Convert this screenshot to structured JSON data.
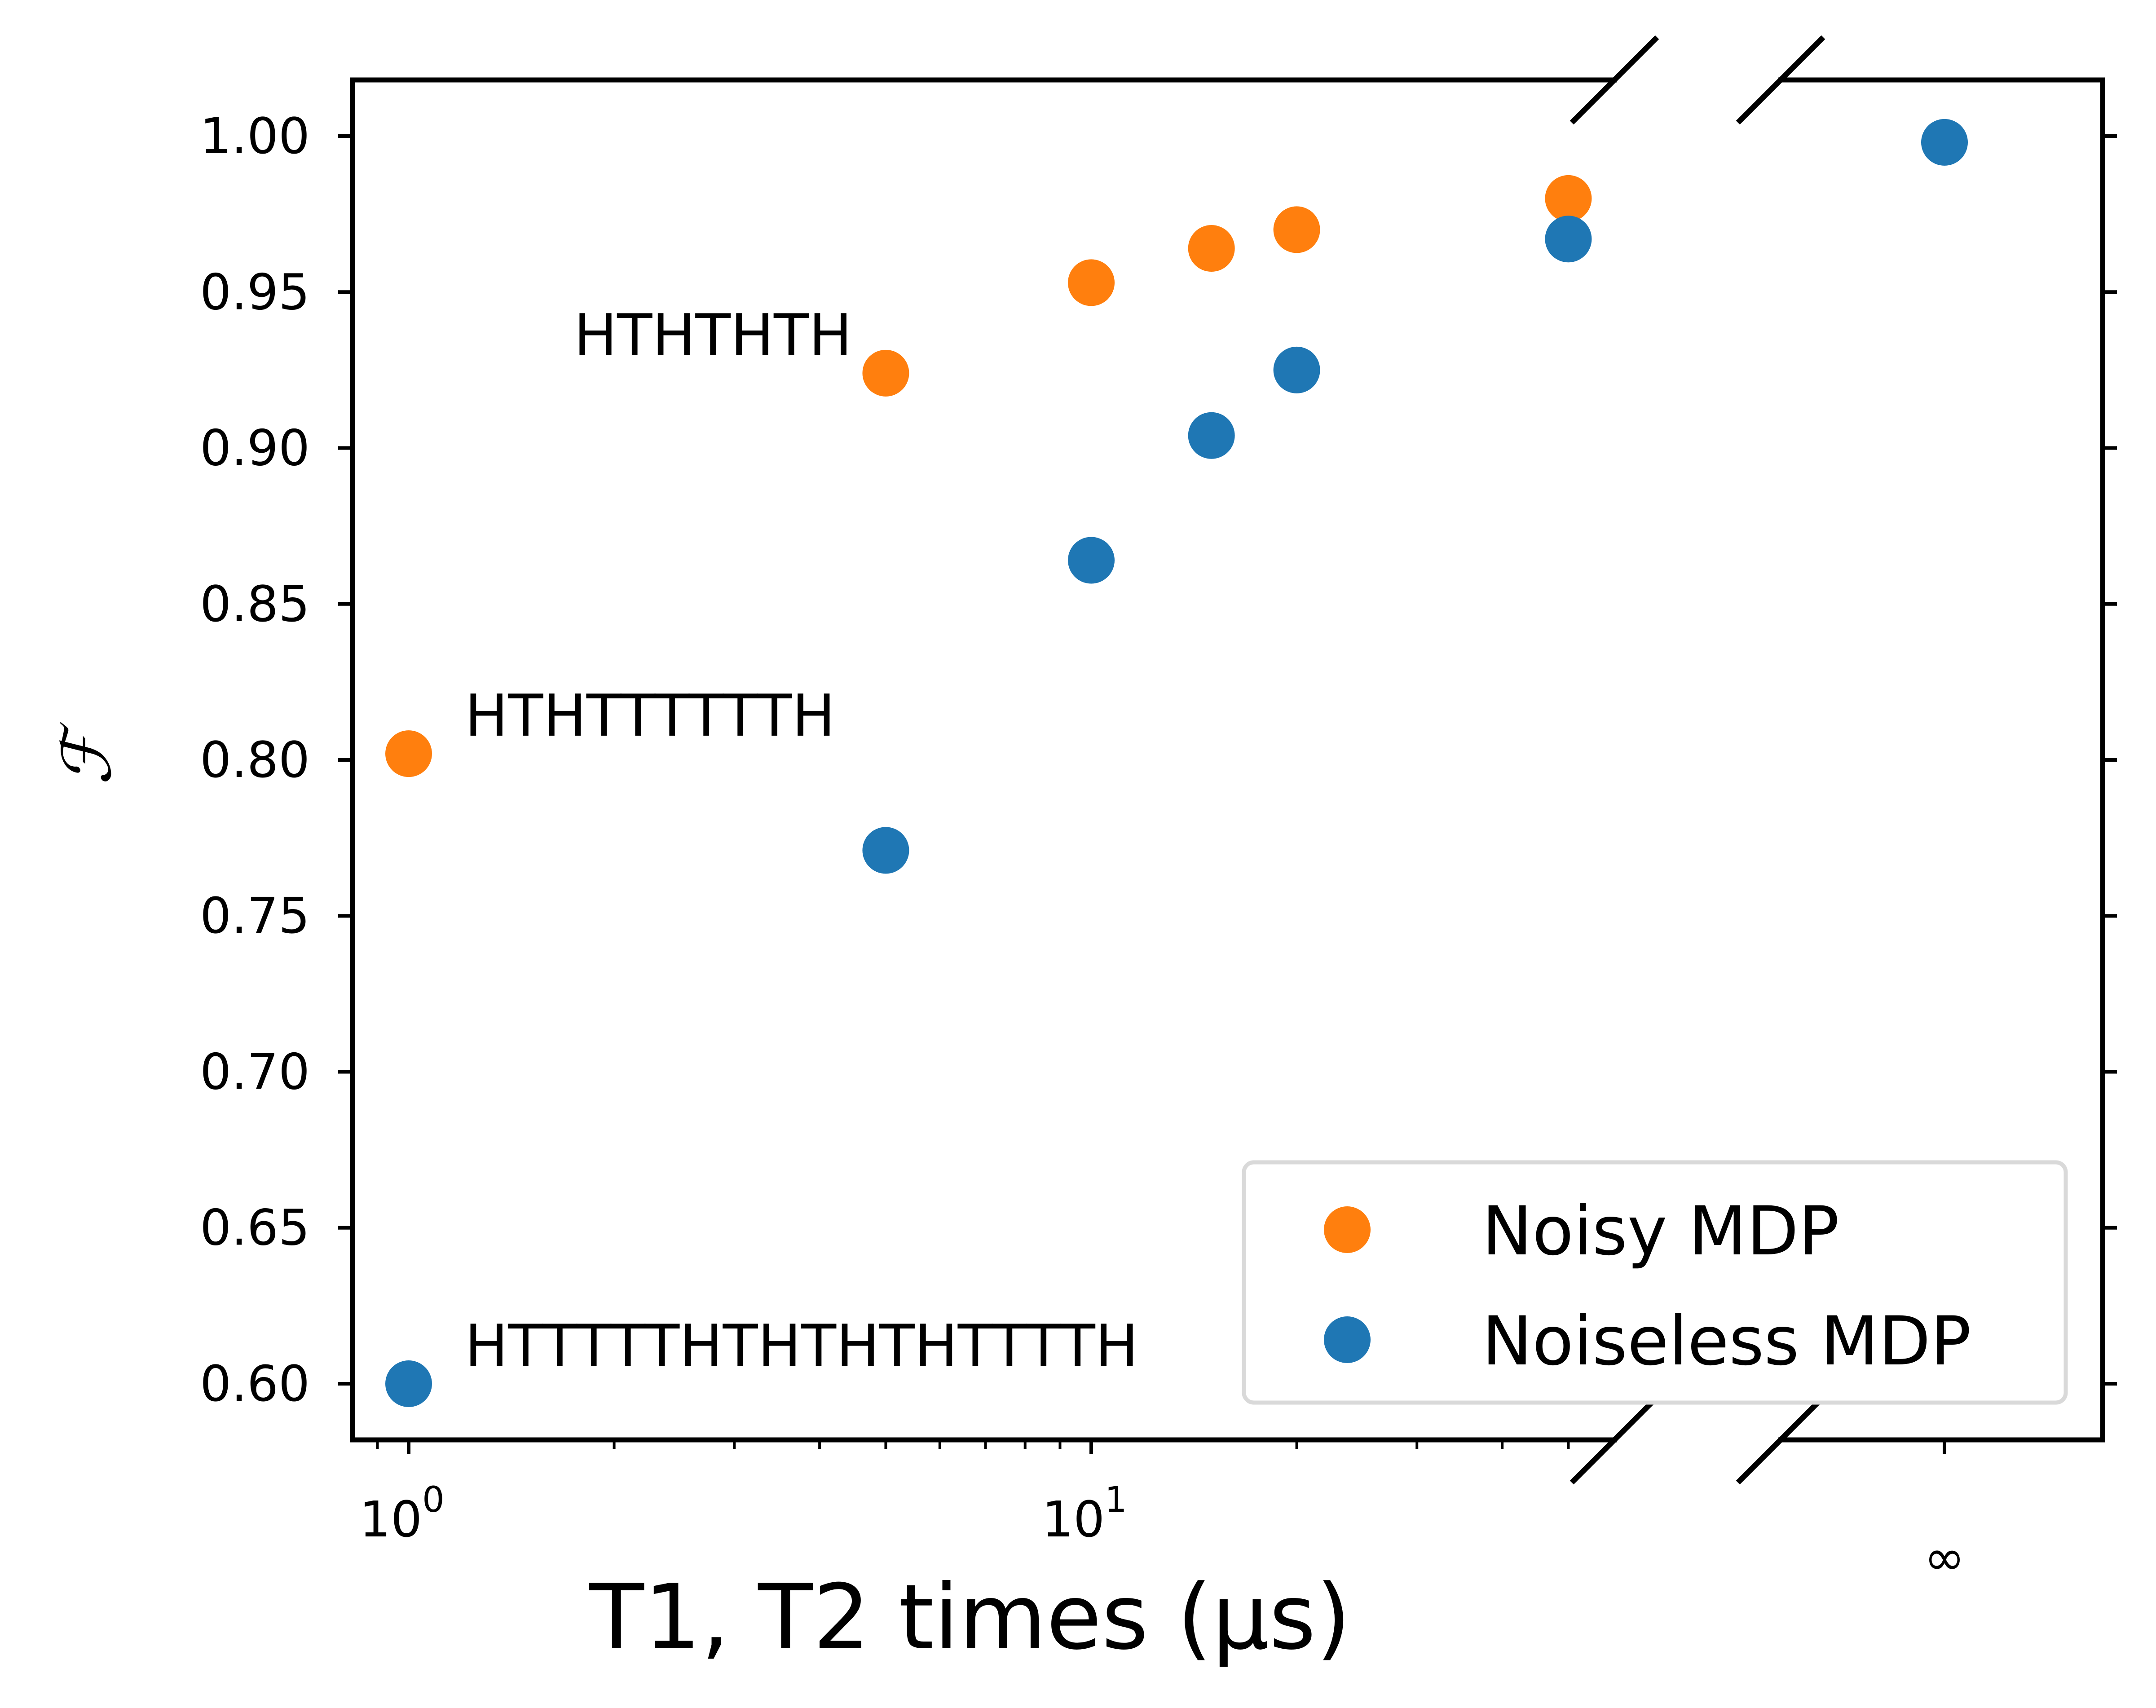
{
  "chart_data": {
    "type": "scatter",
    "title": "",
    "xlabel": "T1, T2 times (μs)",
    "ylabel": "ℱ",
    "x_scale": "log",
    "xlim": [
      0.9,
      60
    ],
    "ylim": [
      0.582,
      1.018
    ],
    "x_ticks": [
      {
        "value": 1,
        "base": "10",
        "exp": "0"
      },
      {
        "value": 10,
        "base": "10",
        "exp": "1"
      }
    ],
    "x_break_tick": "∞",
    "y_ticks": [
      "0.60",
      "0.65",
      "0.70",
      "0.75",
      "0.80",
      "0.85",
      "0.90",
      "0.95",
      "1.00"
    ],
    "grid": false,
    "legend_position": "bottom-right",
    "series": [
      {
        "name": "Noisy MDP",
        "color": "#ff7f0e",
        "points": [
          {
            "x": 1,
            "y": 0.802
          },
          {
            "x": 5,
            "y": 0.924
          },
          {
            "x": 10,
            "y": 0.953
          },
          {
            "x": 15,
            "y": 0.964
          },
          {
            "x": 20,
            "y": 0.97
          },
          {
            "x": 50,
            "y": 0.98
          }
        ]
      },
      {
        "name": "Noiseless MDP",
        "color": "#1f77b4",
        "points": [
          {
            "x": 1,
            "y": 0.6
          },
          {
            "x": 5,
            "y": 0.771
          },
          {
            "x": 10,
            "y": 0.864
          },
          {
            "x": 15,
            "y": 0.904
          },
          {
            "x": 20,
            "y": 0.925
          },
          {
            "x": 50,
            "y": 0.967
          },
          {
            "x": "inf",
            "y": 0.998
          }
        ]
      }
    ],
    "annotations": [
      {
        "text": "HTHTHTH",
        "x": 5,
        "y": 0.924,
        "side": "left"
      },
      {
        "text": "HTHTTTTTTH",
        "x": 1,
        "y": 0.802,
        "side": "right"
      },
      {
        "text": "HTTTTTHTHTHTHTTTTH",
        "x": 1,
        "y": 0.6,
        "side": "right"
      }
    ]
  }
}
